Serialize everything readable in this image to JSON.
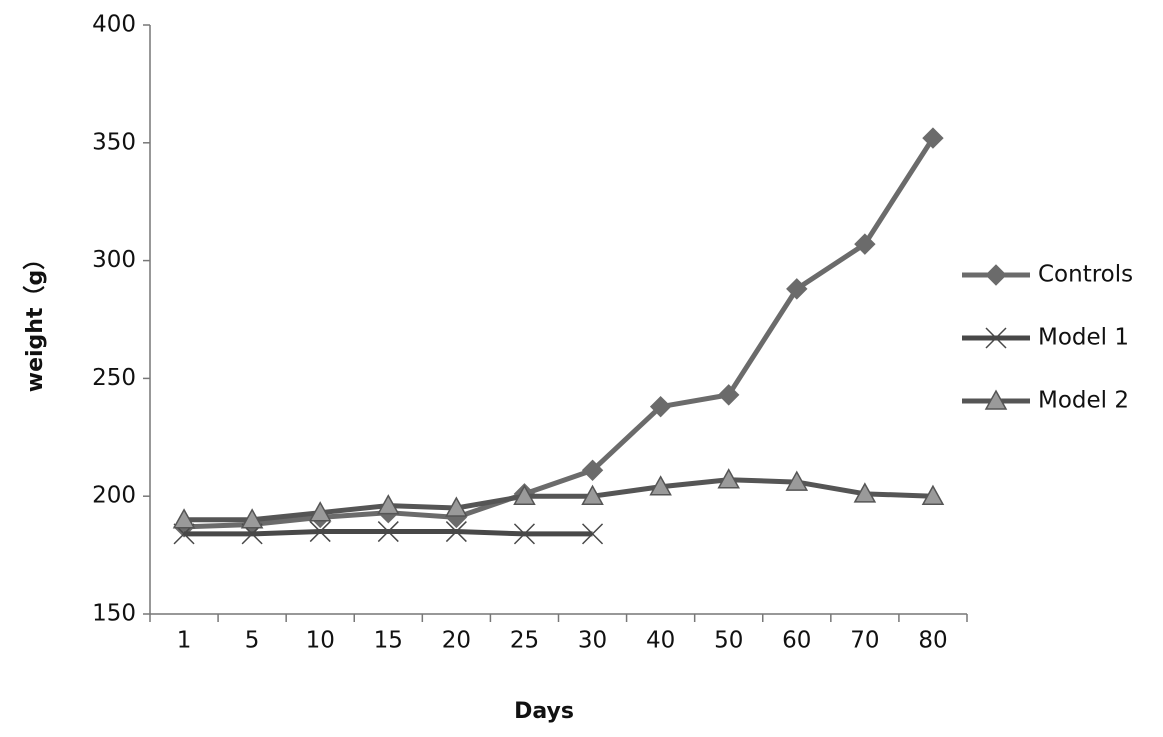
{
  "chart_data": {
    "type": "line",
    "x_label": "Days",
    "y_label": "weight（g）",
    "categories": [
      "1",
      "5",
      "10",
      "15",
      "20",
      "25",
      "30",
      "40",
      "50",
      "60",
      "70",
      "80"
    ],
    "series": [
      {
        "name": "Controls",
        "color": "#6b6b6b",
        "marker": "diamond",
        "values": [
          187,
          188,
          191,
          193,
          191,
          201,
          211,
          238,
          243,
          288,
          307,
          352
        ]
      },
      {
        "name": "Model 1",
        "color": "#484848",
        "marker": "x",
        "values": [
          184,
          184,
          185,
          185,
          185,
          184,
          184,
          null,
          null,
          null,
          null,
          null
        ]
      },
      {
        "name": "Model 2",
        "color": "#555555",
        "marker": "triangle",
        "values": [
          190,
          190,
          193,
          196,
          195,
          200,
          200,
          204,
          207,
          206,
          201,
          200
        ]
      }
    ],
    "ylim": [
      150,
      400
    ],
    "yticks": [
      150,
      200,
      250,
      300,
      350,
      400
    ],
    "grid": false,
    "legend": "right"
  }
}
